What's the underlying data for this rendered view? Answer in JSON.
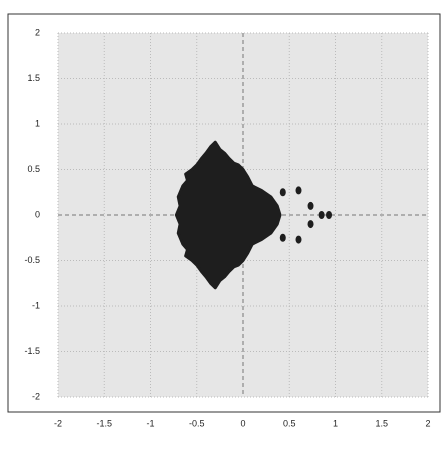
{
  "chart_data": {
    "type": "region",
    "xlim": [
      -2,
      2
    ],
    "ylim": [
      -2,
      2
    ],
    "xticks": [
      -2,
      -1.5,
      -1,
      -0.5,
      0,
      0.5,
      1,
      1.5,
      2
    ],
    "yticks": [
      -2,
      -1.5,
      -1,
      -0.5,
      0,
      0.5,
      1,
      1.5,
      2
    ],
    "grid": true,
    "background": "#e6e6e6",
    "series": [
      {
        "kind": "polygon",
        "color": "#1e1e1e",
        "x": [
          0.4,
          0.37,
          0.3,
          0.2,
          0.1,
          0.05,
          0,
          -0.05,
          -0.1,
          -0.15,
          -0.2,
          -0.25,
          -0.3,
          -0.35,
          -0.4,
          -0.45,
          -0.5,
          -0.55,
          -0.62,
          -0.6,
          -0.65,
          -0.7,
          -0.68,
          -0.72,
          -0.68,
          -0.7,
          -0.65,
          -0.6,
          -0.62,
          -0.55,
          -0.5,
          -0.45,
          -0.4,
          -0.35,
          -0.3,
          -0.25,
          -0.2,
          -0.15,
          -0.1,
          -0.05,
          0,
          0.05,
          0.1,
          0.2,
          0.3,
          0.37
        ],
        "y": [
          0,
          0.1,
          0.2,
          0.27,
          0.32,
          0.42,
          0.5,
          0.55,
          0.57,
          0.62,
          0.68,
          0.72,
          0.8,
          0.75,
          0.68,
          0.62,
          0.55,
          0.5,
          0.45,
          0.38,
          0.32,
          0.2,
          0.1,
          0,
          -0.1,
          -0.2,
          -0.32,
          -0.38,
          -0.45,
          -0.5,
          -0.55,
          -0.62,
          -0.68,
          -0.75,
          -0.8,
          -0.72,
          -0.68,
          -0.62,
          -0.57,
          -0.55,
          -0.5,
          -0.42,
          -0.32,
          -0.27,
          -0.2,
          -0.1
        ]
      },
      {
        "kind": "spots",
        "color": "#1e1e1e",
        "x": [
          0.43,
          0.6,
          0.73,
          0.73,
          0.43,
          0.6,
          0.85,
          0.93
        ],
        "y": [
          0.25,
          0.27,
          0.1,
          -0.1,
          -0.25,
          -0.27,
          0,
          0
        ]
      }
    ]
  }
}
